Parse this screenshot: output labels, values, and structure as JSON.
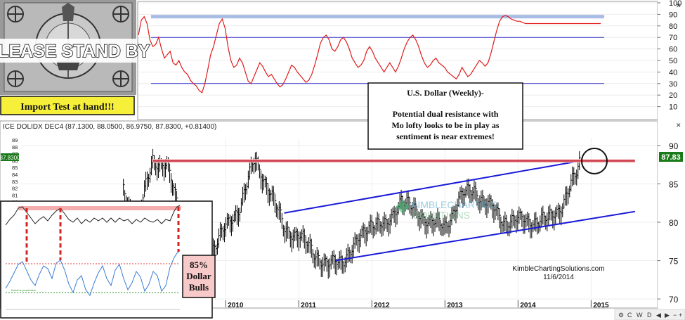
{
  "chart_data": [
    {
      "type": "line",
      "panel": "sentiment indicator (top)",
      "ylim": [
        0,
        100
      ],
      "yticks": [
        "100",
        "90",
        "80",
        "70",
        "60",
        "50",
        "40",
        "30",
        "20",
        "10"
      ],
      "reference_lines": [
        {
          "value": 88,
          "color": "#a8bde6",
          "role": "highlight band"
        },
        {
          "value": 70,
          "color": "#3333cc"
        },
        {
          "value": 30,
          "color": "#3333cc"
        }
      ],
      "series": [
        {
          "color": "#e01b1b",
          "x": [
            0,
            4,
            8,
            12,
            16,
            20,
            24,
            28,
            32,
            36,
            40,
            44,
            48,
            52,
            56,
            60,
            64,
            68,
            72,
            76,
            80,
            84,
            88,
            92,
            96,
            100,
            104,
            108,
            112,
            116,
            120,
            124,
            128,
            132,
            136,
            140,
            144,
            148,
            152,
            156,
            160,
            164,
            168,
            172,
            176,
            180,
            184,
            188,
            192,
            196,
            200,
            204,
            208,
            212,
            216,
            220,
            224,
            228,
            232,
            236,
            240,
            244,
            248,
            252,
            256,
            260,
            264,
            268,
            272,
            276,
            280,
            284,
            288,
            292,
            296,
            300,
            304,
            308,
            312,
            316,
            320,
            324,
            328,
            332,
            336,
            340,
            344,
            348,
            352,
            356,
            360,
            364,
            368,
            372,
            376,
            380,
            384,
            388,
            392,
            396,
            400,
            404,
            408,
            412,
            416,
            420,
            424,
            428,
            432,
            436,
            440,
            444,
            448,
            452,
            456,
            460,
            464,
            468,
            472,
            476,
            480,
            484,
            488,
            492,
            496,
            500,
            504,
            508,
            512,
            516,
            520,
            524,
            528,
            532,
            536,
            540,
            544,
            548,
            552,
            556,
            560,
            564,
            568,
            572,
            576,
            580,
            584,
            588,
            592,
            596,
            600,
            604,
            608,
            612,
            616,
            620,
            624,
            628,
            632,
            636,
            640
          ],
          "values": [
            72,
            85,
            88,
            82,
            68,
            62,
            64,
            70,
            60,
            52,
            55,
            58,
            48,
            46,
            50,
            44,
            40,
            38,
            33,
            30,
            28,
            24,
            22,
            30,
            42,
            55,
            62,
            72,
            82,
            86,
            78,
            62,
            50,
            44,
            46,
            52,
            48,
            40,
            32,
            30,
            36,
            42,
            48,
            45,
            40,
            36,
            38,
            34,
            30,
            27,
            29,
            34,
            40,
            46,
            44,
            40,
            37,
            34,
            31,
            33,
            38,
            46,
            55,
            65,
            70,
            72,
            68,
            60,
            58,
            62,
            68,
            70,
            66,
            60,
            52,
            48,
            44,
            46,
            50,
            58,
            62,
            58,
            52,
            48,
            44,
            40,
            44,
            48,
            44,
            40,
            45,
            52,
            60,
            66,
            70,
            72,
            68,
            62,
            54,
            48,
            44,
            46,
            50,
            52,
            48,
            46,
            44,
            40,
            38,
            36,
            34,
            38,
            44,
            40,
            36,
            38,
            42,
            46,
            50,
            48,
            45,
            48,
            56,
            66,
            76,
            84,
            88,
            89,
            88,
            86,
            85,
            84,
            84,
            83,
            82,
            82,
            82,
            82,
            82,
            82,
            82,
            82,
            82,
            82,
            82,
            82,
            82,
            82,
            82,
            82,
            82,
            82,
            82,
            82,
            82,
            82,
            82,
            82,
            82,
            82,
            82
          ]
        }
      ]
    },
    {
      "type": "bar",
      "panel": "price chart (bottom)",
      "title": "ICE DOLIDX DEC4 (87.1300, 88.0500, 86.9750, 87.8300, +0.81400)",
      "ylim": [
        69,
        91
      ],
      "yticks_right": [
        "90",
        "85",
        "80",
        "75",
        "70"
      ],
      "yticks_left": [
        "89",
        "88",
        "87",
        "86",
        "85",
        "84",
        "83",
        "82",
        "81",
        "80"
      ],
      "xticks": [
        "2010",
        "2011",
        "2012",
        "2013",
        "2014",
        "2015"
      ],
      "last_price_label": "87.83",
      "left_price_label": "87.8300",
      "series": [
        {
          "color": "#000000",
          "x": [
            2008.6,
            2008.8,
            2009.0,
            2009.2,
            2009.4,
            2009.6,
            2009.8,
            2010.0,
            2010.2,
            2010.4,
            2010.6,
            2010.8,
            2011.0,
            2011.2,
            2011.4,
            2011.6,
            2011.8,
            2012.0,
            2012.2,
            2012.4,
            2012.6,
            2012.8,
            2013.0,
            2013.2,
            2013.4,
            2013.6,
            2013.8,
            2014.0,
            2014.2,
            2014.4,
            2014.6,
            2014.8,
            2014.85
          ],
          "values": [
            84,
            80,
            88,
            87,
            80,
            77,
            76,
            79,
            82,
            88,
            84,
            79,
            78,
            76,
            74,
            75,
            77,
            80,
            79,
            83,
            81,
            80,
            79,
            83,
            84,
            82,
            80,
            80,
            80,
            80,
            82,
            86,
            87.8
          ]
        }
      ],
      "trendlines": [
        {
          "from": [
            2010.8,
            81.2
          ],
          "to": [
            2014.85,
            88.0
          ],
          "color": "#1a1ad9",
          "label": "upper channel"
        },
        {
          "from": [
            2011.5,
            75.0
          ],
          "to": [
            2015.6,
            81.4
          ],
          "color": "#1a1ad9",
          "label": "lower channel"
        },
        {
          "from": [
            2009.0,
            88.0
          ],
          "to": [
            2015.6,
            88.0
          ],
          "color": "#c8273a",
          "label": "resistance"
        }
      ]
    }
  ],
  "overlay": {
    "please_stand_by": "PLEASE STAND BY",
    "import_test": "Import Test at hand!!!",
    "annotation_title": "U.S. Dollar (Weekly)-",
    "annotation_lines": [
      "Potential dual resistance with",
      "Mo lofty looks to be in play as",
      "sentiment is near extremes!"
    ],
    "dollar_bulls": [
      "85%",
      "Dollar",
      "Bulls"
    ],
    "watermark": "KIMBLECHARTING SOLUTIONS",
    "credit_name": "KimbleChartingSolutions.com",
    "credit_date": "11/6/2014",
    "toolbar_letters": [
      "C",
      "W",
      "D"
    ]
  },
  "colors": {
    "price_bars": "#000000",
    "sentiment_line": "#e01b1b",
    "channel_lines": "#1a1ad9",
    "resistance_line": "#c8273a",
    "price_box": "#1a7a1a",
    "note_box_fill": "#f7c9c9",
    "import_box_fill": "#f7f03a"
  }
}
